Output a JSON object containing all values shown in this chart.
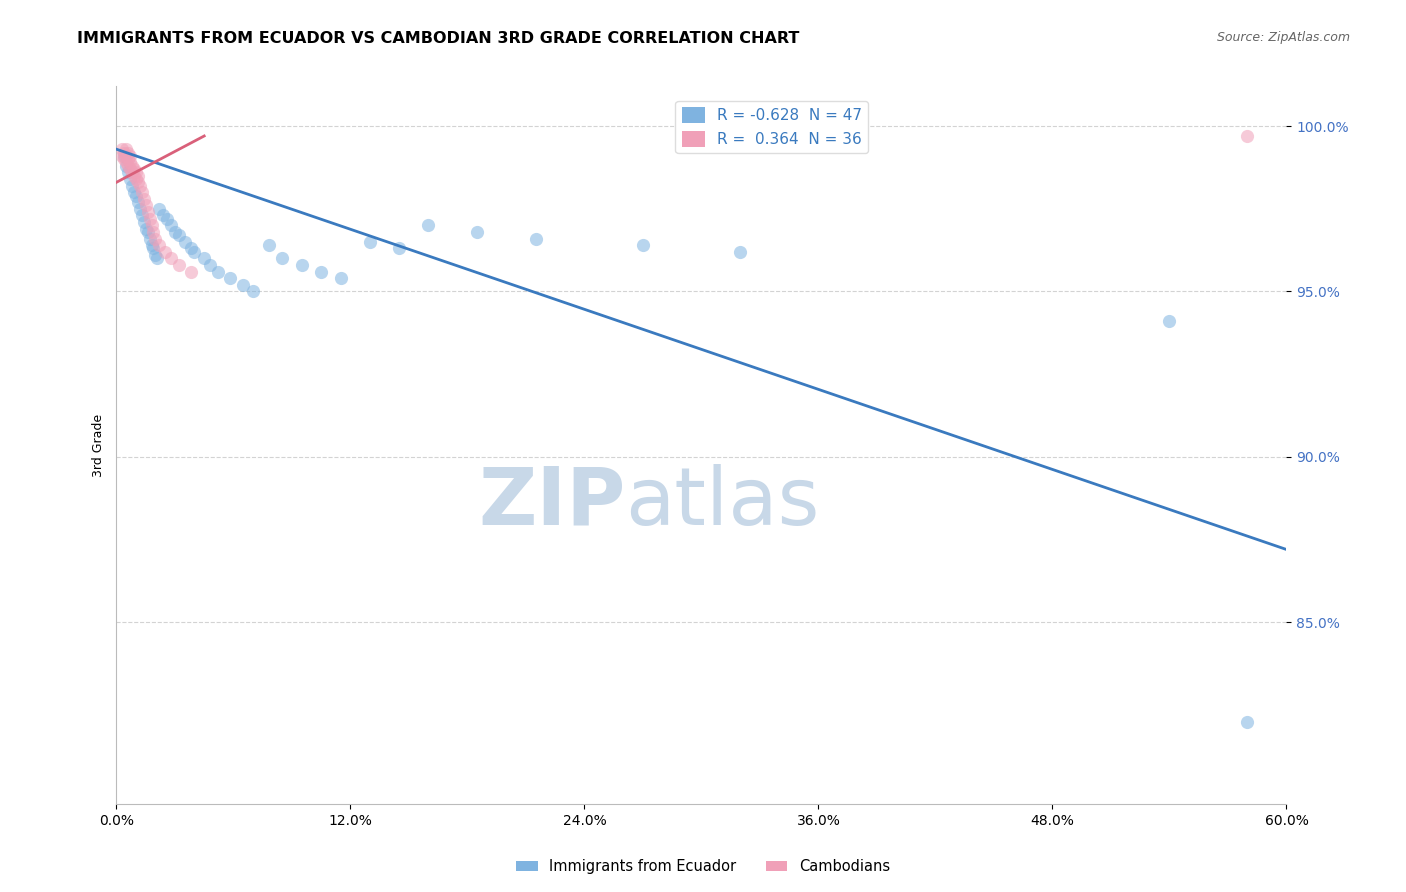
{
  "title": "IMMIGRANTS FROM ECUADOR VS CAMBODIAN 3RD GRADE CORRELATION CHART",
  "source": "Source: ZipAtlas.com",
  "ylabel": "3rd Grade",
  "legend_blue_R": "-0.628",
  "legend_blue_N": "47",
  "legend_pink_R": "0.364",
  "legend_pink_N": "36",
  "legend_label_blue": "Immigrants from Ecuador",
  "legend_label_pink": "Cambodians",
  "watermark_zip": "ZIP",
  "watermark_atlas": "atlas",
  "xlim": [
    0.0,
    0.6
  ],
  "ylim": [
    0.795,
    1.012
  ],
  "yticks": [
    0.85,
    0.9,
    0.95,
    1.0
  ],
  "ytick_labels": [
    "85.0%",
    "90.0%",
    "95.0%",
    "100.0%"
  ],
  "xticks": [
    0.0,
    0.12,
    0.24,
    0.36,
    0.48,
    0.6
  ],
  "blue_scatter_x": [
    0.004,
    0.005,
    0.006,
    0.007,
    0.008,
    0.009,
    0.01,
    0.011,
    0.012,
    0.013,
    0.014,
    0.015,
    0.016,
    0.017,
    0.018,
    0.019,
    0.02,
    0.021,
    0.022,
    0.024,
    0.026,
    0.028,
    0.03,
    0.032,
    0.035,
    0.038,
    0.04,
    0.045,
    0.048,
    0.052,
    0.058,
    0.065,
    0.07,
    0.078,
    0.085,
    0.095,
    0.105,
    0.115,
    0.13,
    0.145,
    0.16,
    0.185,
    0.215,
    0.27,
    0.32,
    0.54,
    0.58
  ],
  "blue_scatter_y": [
    0.991,
    0.988,
    0.986,
    0.984,
    0.982,
    0.98,
    0.979,
    0.977,
    0.975,
    0.973,
    0.971,
    0.969,
    0.968,
    0.966,
    0.964,
    0.963,
    0.961,
    0.96,
    0.975,
    0.973,
    0.972,
    0.97,
    0.968,
    0.967,
    0.965,
    0.963,
    0.962,
    0.96,
    0.958,
    0.956,
    0.954,
    0.952,
    0.95,
    0.964,
    0.96,
    0.958,
    0.956,
    0.954,
    0.965,
    0.963,
    0.97,
    0.968,
    0.966,
    0.964,
    0.962,
    0.941,
    0.82
  ],
  "pink_scatter_x": [
    0.003,
    0.003,
    0.004,
    0.004,
    0.005,
    0.005,
    0.005,
    0.006,
    0.006,
    0.006,
    0.007,
    0.007,
    0.007,
    0.008,
    0.008,
    0.009,
    0.009,
    0.01,
    0.01,
    0.011,
    0.011,
    0.012,
    0.013,
    0.014,
    0.015,
    0.016,
    0.017,
    0.018,
    0.019,
    0.02,
    0.022,
    0.025,
    0.028,
    0.032,
    0.038,
    0.58
  ],
  "pink_scatter_y": [
    0.991,
    0.993,
    0.99,
    0.992,
    0.989,
    0.991,
    0.993,
    0.988,
    0.99,
    0.992,
    0.987,
    0.989,
    0.991,
    0.986,
    0.988,
    0.985,
    0.987,
    0.984,
    0.986,
    0.983,
    0.985,
    0.982,
    0.98,
    0.978,
    0.976,
    0.974,
    0.972,
    0.97,
    0.968,
    0.966,
    0.964,
    0.962,
    0.96,
    0.958,
    0.956,
    0.997
  ],
  "blue_line_x": [
    0.0,
    0.6
  ],
  "blue_line_y": [
    0.993,
    0.872
  ],
  "pink_line_x": [
    0.0,
    0.045
  ],
  "pink_line_y": [
    0.983,
    0.997
  ],
  "blue_color": "#7fb3e0",
  "pink_color": "#f0a0b8",
  "blue_line_color": "#3a7abf",
  "pink_line_color": "#d9607a",
  "scatter_alpha": 0.55,
  "scatter_size": 90,
  "grid_color": "#c8c8c8",
  "grid_style": "--",
  "grid_alpha": 0.8,
  "title_fontsize": 11.5,
  "axis_label_fontsize": 9,
  "tick_fontsize": 10,
  "tick_color": "#4472c4",
  "source_fontsize": 9,
  "watermark_color": "#c8d8e8",
  "watermark_fontsize_zip": 58,
  "watermark_fontsize_atlas": 58
}
